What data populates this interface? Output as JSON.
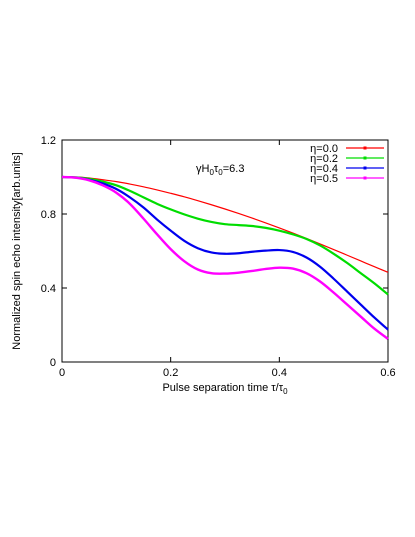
{
  "chart_data": {
    "type": "line",
    "xlabel_main": "Pulse separation time τ/τ",
    "xlabel_sub": "0",
    "ylabel": "Normalized spin echo intensity[arb.units]",
    "annotation": {
      "p1": "γH",
      "s1": "0",
      "p2": "τ",
      "s2": "0",
      "p3": "=6.3"
    },
    "xlim": [
      0,
      0.6
    ],
    "ylim": [
      0,
      1.2
    ],
    "xticks": [
      0,
      0.2,
      0.4,
      0.6
    ],
    "xtick_labels": [
      "0",
      "0.2",
      "0.4",
      "0.6"
    ],
    "yticks": [
      0,
      0.4,
      0.8,
      1.2
    ],
    "ytick_labels": [
      "0",
      "0.4",
      "0.8",
      "1.2"
    ],
    "grid": false,
    "legend_position": "top-right",
    "x": [
      0,
      0.025,
      0.05,
      0.075,
      0.1,
      0.125,
      0.15,
      0.175,
      0.2,
      0.225,
      0.25,
      0.275,
      0.3,
      0.325,
      0.35,
      0.375,
      0.4,
      0.425,
      0.45,
      0.475,
      0.5,
      0.525,
      0.55,
      0.575,
      0.6
    ],
    "series": [
      {
        "name": "η=0.0",
        "color": "#ff0000",
        "values": [
          1.0,
          1.0,
          0.995,
          0.985,
          0.975,
          0.962,
          0.947,
          0.93,
          0.912,
          0.893,
          0.872,
          0.85,
          0.827,
          0.803,
          0.778,
          0.752,
          0.725,
          0.697,
          0.668,
          0.638,
          0.608,
          0.577,
          0.546,
          0.515,
          0.485
        ]
      },
      {
        "name": "η=0.2",
        "color": "#00dd00",
        "values": [
          1.0,
          0.998,
          0.99,
          0.975,
          0.955,
          0.925,
          0.89,
          0.855,
          0.825,
          0.798,
          0.775,
          0.757,
          0.745,
          0.74,
          0.735,
          0.725,
          0.71,
          0.69,
          0.665,
          0.63,
          0.585,
          0.535,
          0.48,
          0.425,
          0.365
        ]
      },
      {
        "name": "η=0.4",
        "color": "#0000ee",
        "values": [
          1.0,
          0.997,
          0.985,
          0.965,
          0.935,
          0.89,
          0.835,
          0.77,
          0.71,
          0.655,
          0.615,
          0.592,
          0.585,
          0.588,
          0.596,
          0.602,
          0.605,
          0.595,
          0.565,
          0.515,
          0.45,
          0.38,
          0.31,
          0.24,
          0.175
        ]
      },
      {
        "name": "η=0.5",
        "color": "#ff00ff",
        "values": [
          1.0,
          0.996,
          0.982,
          0.955,
          0.915,
          0.855,
          0.775,
          0.69,
          0.61,
          0.545,
          0.5,
          0.48,
          0.478,
          0.483,
          0.492,
          0.503,
          0.51,
          0.505,
          0.48,
          0.435,
          0.375,
          0.31,
          0.245,
          0.18,
          0.125
        ]
      }
    ]
  }
}
